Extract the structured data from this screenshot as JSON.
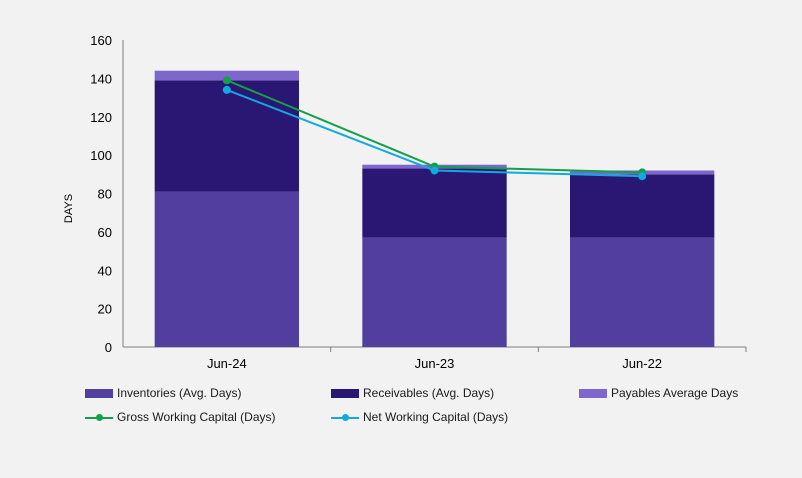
{
  "chart_data": {
    "type": "bar",
    "stacked": true,
    "categories": [
      "Jun-24",
      "Jun-23",
      "Jun-22"
    ],
    "ylabel": "DAYS",
    "ylim": [
      0,
      160
    ],
    "yticks": [
      0,
      20,
      40,
      60,
      80,
      100,
      120,
      140,
      160
    ],
    "grid": false,
    "legend_position": "bottom",
    "series": [
      {
        "name": "Inventories (Avg. Days)",
        "kind": "bar",
        "color": "#523e9e",
        "values": [
          81,
          57,
          57
        ]
      },
      {
        "name": "Receivables (Avg. Days)",
        "kind": "bar",
        "color": "#2a1673",
        "values": [
          58,
          36,
          33
        ]
      },
      {
        "name": "Payables Average Days",
        "kind": "bar",
        "color": "#7e67cc",
        "values": [
          5,
          2,
          2
        ]
      },
      {
        "name": "Gross Working Capital (Days)",
        "kind": "line",
        "color": "#12a04b",
        "values": [
          139,
          94,
          91
        ]
      },
      {
        "name": "Net Working Capital (Days)",
        "kind": "line",
        "color": "#10a9e0",
        "values": [
          134,
          92,
          89
        ]
      }
    ]
  }
}
